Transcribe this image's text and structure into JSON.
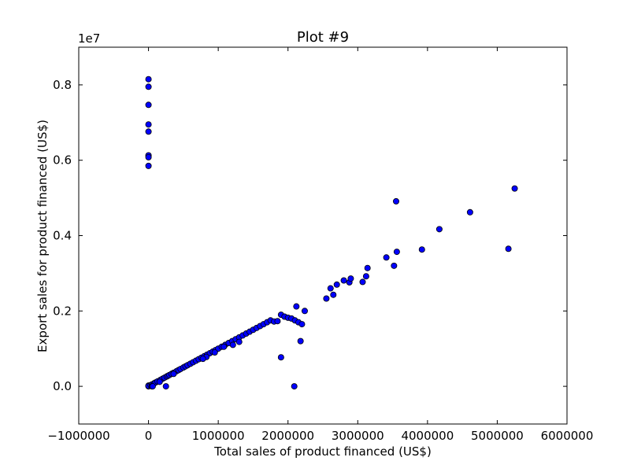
{
  "chart_data": {
    "type": "scatter",
    "title": "Plot #9",
    "xlabel": "Total sales of product financed (US$)",
    "ylabel": "Export sales for product financed (US$)",
    "y_offset_label": "1e7",
    "xlim": [
      -1000000,
      6000000
    ],
    "ylim": [
      -1000000,
      9000000
    ],
    "x_ticks": [
      -1000000,
      0,
      1000000,
      2000000,
      3000000,
      4000000,
      5000000,
      6000000
    ],
    "x_tick_labels": [
      "−1000000",
      "0",
      "1000000",
      "2000000",
      "3000000",
      "4000000",
      "5000000",
      "6000000"
    ],
    "y_ticks": [
      0,
      2000000,
      4000000,
      6000000,
      8000000
    ],
    "y_tick_labels": [
      "0.0",
      "0.2",
      "0.4",
      "0.6",
      "0.8"
    ],
    "grid": false,
    "marker_color": "#0000ff",
    "marker_edge_color": "#000000",
    "series": [
      {
        "x": [
          0,
          0,
          0,
          0,
          0,
          0,
          0,
          0,
          0,
          0,
          0,
          30000,
          50000,
          80000,
          100000,
          130000,
          170000,
          200000,
          230000,
          260000,
          280000,
          300000,
          330000,
          360000,
          400000,
          430000,
          460000,
          500000,
          530000,
          560000,
          600000,
          640000,
          680000,
          720000,
          760000,
          800000,
          840000,
          880000,
          920000,
          960000,
          1000000,
          1050000,
          1100000,
          1150000,
          1200000,
          1250000,
          1300000,
          1350000,
          1400000,
          1450000,
          1500000,
          1550000,
          1600000,
          1650000,
          1700000,
          1750000,
          1800000,
          1850000,
          1900000,
          1950000,
          2000000,
          2050000,
          2100000,
          2150000,
          2200000,
          1210000,
          1300000,
          1080000,
          950000,
          830000,
          780000,
          360000,
          160000,
          50000,
          60000,
          250000,
          2120000,
          2240000,
          2180000,
          1900000,
          2090000,
          2550000,
          2610000,
          2650000,
          2700000,
          2800000,
          2880000,
          2900000,
          3070000,
          3120000,
          3140000,
          3410000,
          3520000,
          3550000,
          3560000,
          3920000,
          4170000,
          4610000,
          5160000,
          5250000
        ],
        "y": [
          8150000,
          7950000,
          7470000,
          6950000,
          6760000,
          6130000,
          6080000,
          5850000,
          0,
          20000,
          10000,
          30000,
          50000,
          80000,
          100000,
          130000,
          170000,
          200000,
          230000,
          260000,
          280000,
          300000,
          330000,
          360000,
          400000,
          430000,
          460000,
          500000,
          530000,
          560000,
          600000,
          640000,
          680000,
          720000,
          760000,
          800000,
          840000,
          880000,
          920000,
          960000,
          1000000,
          1050000,
          1100000,
          1150000,
          1200000,
          1250000,
          1300000,
          1350000,
          1400000,
          1450000,
          1500000,
          1550000,
          1600000,
          1650000,
          1700000,
          1750000,
          1720000,
          1730000,
          1900000,
          1850000,
          1820000,
          1800000,
          1750000,
          1700000,
          1650000,
          1100000,
          1180000,
          1050000,
          900000,
          780000,
          730000,
          330000,
          120000,
          0,
          0,
          0,
          2120000,
          2000000,
          1200000,
          770000,
          0,
          2330000,
          2600000,
          2430000,
          2700000,
          2810000,
          2760000,
          2860000,
          2770000,
          2920000,
          3140000,
          3420000,
          3200000,
          4910000,
          3570000,
          3630000,
          4170000,
          4620000,
          3650000,
          5250000
        ]
      }
    ]
  }
}
